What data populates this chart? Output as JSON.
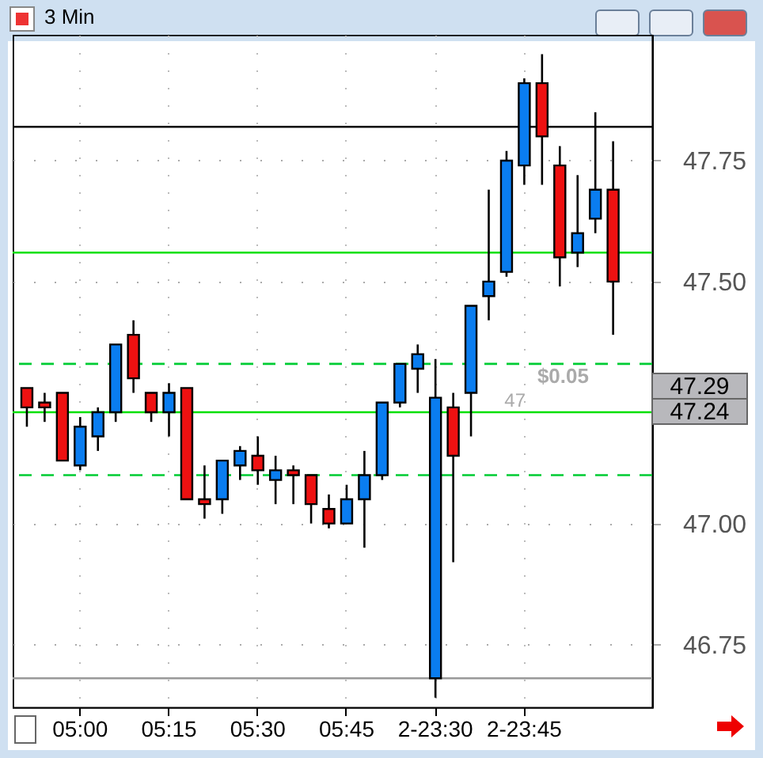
{
  "chart_data": {
    "type": "candlestick",
    "title": "3 Min",
    "categories": [
      null,
      null,
      null,
      "05:00",
      null,
      null,
      null,
      null,
      "05:15",
      null,
      null,
      null,
      null,
      "05:30",
      null,
      null,
      null,
      null,
      "05:45",
      null,
      null,
      null,
      null,
      "2-23:30",
      null,
      null,
      null,
      null,
      "2-23:45",
      null,
      null,
      null,
      null,
      null
    ],
    "ohlc": [
      [
        47.28,
        47.28,
        47.2,
        47.24
      ],
      [
        47.25,
        47.27,
        47.21,
        47.24
      ],
      [
        47.27,
        47.27,
        47.13,
        47.13
      ],
      [
        47.12,
        47.22,
        47.11,
        47.2
      ],
      [
        47.18,
        47.24,
        47.15,
        47.23
      ],
      [
        47.23,
        47.37,
        47.21,
        47.37
      ],
      [
        47.39,
        47.42,
        47.27,
        47.3
      ],
      [
        47.27,
        47.27,
        47.21,
        47.23
      ],
      [
        47.23,
        47.29,
        47.18,
        47.27
      ],
      [
        47.28,
        47.28,
        47.05,
        47.05
      ],
      [
        47.05,
        47.12,
        47.01,
        47.04
      ],
      [
        47.05,
        47.13,
        47.02,
        47.13
      ],
      [
        47.12,
        47.16,
        47.09,
        47.15
      ],
      [
        47.14,
        47.18,
        47.08,
        47.11
      ],
      [
        47.09,
        47.14,
        47.04,
        47.11
      ],
      [
        47.11,
        47.12,
        47.04,
        47.1
      ],
      [
        47.1,
        47.1,
        47.0,
        47.04
      ],
      [
        47.03,
        47.06,
        46.99,
        47.0
      ],
      [
        47.0,
        47.08,
        47.0,
        47.05
      ],
      [
        47.05,
        47.15,
        46.95,
        47.1
      ],
      [
        47.1,
        47.25,
        47.09,
        47.25
      ],
      [
        47.25,
        47.33,
        47.24,
        47.33
      ],
      [
        47.32,
        47.37,
        47.27,
        47.35
      ],
      [
        46.68,
        47.34,
        46.64,
        47.26
      ],
      [
        47.24,
        47.27,
        46.92,
        47.14
      ],
      [
        47.27,
        47.45,
        47.18,
        47.45
      ],
      [
        47.47,
        47.69,
        47.42,
        47.5
      ],
      [
        47.52,
        47.77,
        47.51,
        47.75
      ],
      [
        47.74,
        47.92,
        47.7,
        47.91
      ],
      [
        47.91,
        47.97,
        47.7,
        47.8
      ],
      [
        47.74,
        47.78,
        47.49,
        47.55
      ],
      [
        47.56,
        47.72,
        47.53,
        47.6
      ],
      [
        47.63,
        47.85,
        47.6,
        47.69
      ],
      [
        47.69,
        47.79,
        47.39,
        47.5
      ]
    ],
    "colors": [
      "#ee1111",
      "#ee1111",
      "#ee1111",
      "#0a7df0",
      "#0a7df0",
      "#0a7df0",
      "#ee1111",
      "#ee1111",
      "#0a7df0",
      "#ee1111",
      "#ee1111",
      "#0a7df0",
      "#0a7df0",
      "#ee1111",
      "#0a7df0",
      "#ee1111",
      "#ee1111",
      "#ee1111",
      "#0a7df0",
      "#0a7df0",
      "#0a7df0",
      "#0a7df0",
      "#0a7df0",
      "#0a7df0",
      "#ee1111",
      "#0a7df0",
      "#0a7df0",
      "#0a7df0",
      "#0a7df0",
      "#ee1111",
      "#ee1111",
      "#0a7df0",
      "#0a7df0",
      "#ee1111"
    ],
    "ylim": [
      46.62,
      48.01
    ],
    "yticks": [
      46.75,
      {
        "value": 47,
        "label": "47.00"
      },
      {
        "value": 47.5,
        "label": "47.50"
      },
      47.75
    ],
    "grid": true,
    "ref_lines": [
      {
        "axis": "y",
        "value": 47.82,
        "color": "#000000",
        "line_style": "solid"
      },
      {
        "axis": "y",
        "value": 47.56,
        "color": "#00e000",
        "line_style": "solid"
      },
      {
        "axis": "y",
        "value": 47.33,
        "color": "#00cc33",
        "line_style": "dashed"
      },
      {
        "axis": "y",
        "value": 47.23,
        "color": "#00e000",
        "line_style": "solid"
      },
      {
        "axis": "y",
        "value": 47.1,
        "color": "#00cc33",
        "line_style": "dashed"
      },
      {
        "axis": "y",
        "value": 46.68,
        "color": "#999999",
        "line_style": "solid"
      }
    ],
    "annotations": [
      "$0.05",
      "47",
      "47.29",
      "47.24"
    ]
  }
}
